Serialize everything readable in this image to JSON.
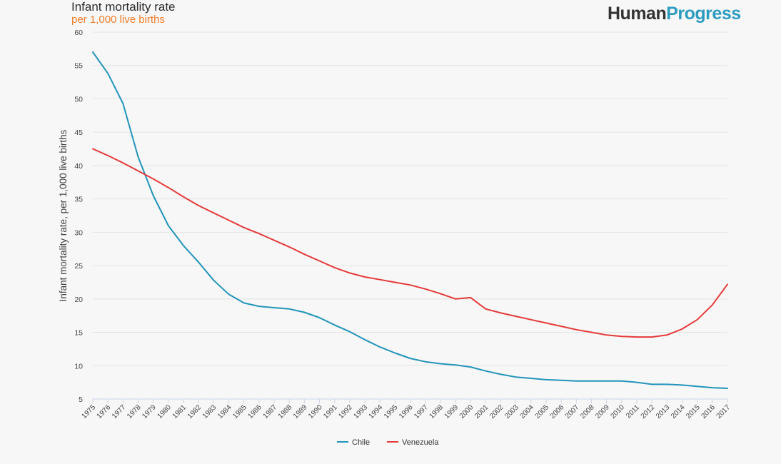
{
  "header": {
    "title": "Infant mortality rate",
    "subtitle": "per 1,000 live births"
  },
  "logo": {
    "part1": "Human",
    "part2": "Progress"
  },
  "colors": {
    "chile": "#2294ba",
    "venezuela": "#e63a3a",
    "grid": "#e3e3e3",
    "axis": "#c9d6e8",
    "text": "#444444"
  },
  "chart_data": {
    "type": "line",
    "title": "Infant mortality rate",
    "subtitle": "per 1,000 live births",
    "xlabel": "",
    "ylabel": "Infant mortality rate, per 1,000 live births",
    "ylim": [
      5,
      60
    ],
    "yticks": [
      5,
      10,
      15,
      20,
      25,
      30,
      35,
      40,
      45,
      50,
      55,
      60
    ],
    "grid": true,
    "legend_position": "bottom-center",
    "x": [
      1975,
      1976,
      1977,
      1978,
      1979,
      1980,
      1981,
      1982,
      1983,
      1984,
      1985,
      1986,
      1987,
      1988,
      1989,
      1990,
      1991,
      1992,
      1993,
      1994,
      1995,
      1996,
      1997,
      1998,
      1999,
      2000,
      2001,
      2002,
      2003,
      2004,
      2005,
      2006,
      2007,
      2008,
      2009,
      2010,
      2011,
      2012,
      2013,
      2014,
      2015,
      2016,
      2017
    ],
    "x_tick_labels": [
      "1975",
      "1976",
      "1977",
      "1978",
      "1979",
      "1980",
      "1981",
      "1982",
      "1983",
      "1984",
      "1985",
      "1986",
      "1987",
      "1988",
      "1989",
      "1990",
      "1991",
      "1992",
      "1993",
      "1994",
      "1995",
      "1996",
      "1997",
      "1998",
      "1999",
      "2000",
      "2001",
      "2002",
      "2003",
      "2004",
      "2005",
      "2006",
      "2007",
      "2008",
      "2009",
      "2010",
      "2011",
      "2012",
      "2013",
      "2014",
      "2015",
      "2016",
      "2017"
    ],
    "series": [
      {
        "name": "Chile",
        "values": [
          57.0,
          53.8,
          49.3,
          41.3,
          35.5,
          31.0,
          28.0,
          25.5,
          22.8,
          20.7,
          19.4,
          18.9,
          18.7,
          18.5,
          18.0,
          17.2,
          16.1,
          15.1,
          13.9,
          12.8,
          11.9,
          11.1,
          10.6,
          10.3,
          10.1,
          9.8,
          9.2,
          8.7,
          8.3,
          8.1,
          7.9,
          7.8,
          7.7,
          7.7,
          7.7,
          7.7,
          7.5,
          7.2,
          7.2,
          7.1,
          6.9,
          6.7,
          6.6
        ]
      },
      {
        "name": "Venezuela",
        "values": [
          42.5,
          41.5,
          40.4,
          39.2,
          38.0,
          36.7,
          35.3,
          34.0,
          32.9,
          31.8,
          30.7,
          29.8,
          28.8,
          27.8,
          26.7,
          25.7,
          24.7,
          23.9,
          23.3,
          22.9,
          22.5,
          22.1,
          21.5,
          20.8,
          20.0,
          20.2,
          18.5,
          17.9,
          17.4,
          16.9,
          16.4,
          15.9,
          15.4,
          15.0,
          14.6,
          14.4,
          14.3,
          14.3,
          14.6,
          15.5,
          16.9,
          19.1,
          22.2
        ]
      }
    ]
  },
  "legend": {
    "items": [
      {
        "label": "Chile",
        "color": "#2294ba"
      },
      {
        "label": "Venezuela",
        "color": "#e63a3a"
      }
    ]
  }
}
